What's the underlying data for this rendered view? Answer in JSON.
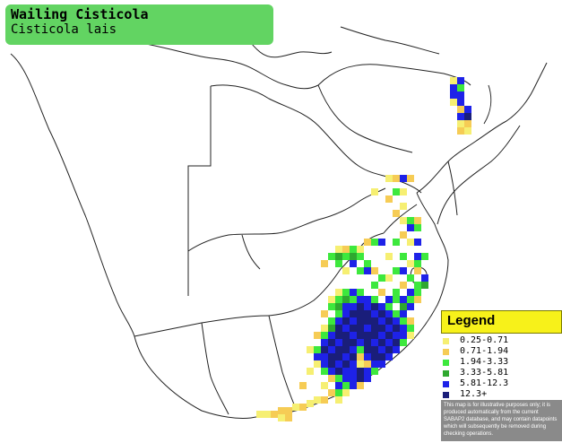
{
  "title": {
    "common_name": "Wailing Cisticola",
    "scientific_name": "Cisticola lais"
  },
  "legend": {
    "heading": "Legend",
    "items": [
      {
        "label": "0.25-0.71",
        "color": "#f6ef72"
      },
      {
        "label": "0.71-1.94",
        "color": "#f6cc55"
      },
      {
        "label": "1.94-3.33",
        "color": "#3de83d"
      },
      {
        "label": "3.33-5.81",
        "color": "#2fa82f"
      },
      {
        "label": "5.81-12.3",
        "color": "#1e22e8"
      },
      {
        "label": "12.3+",
        "color": "#1a1e7a"
      }
    ],
    "note": "This map is for illustrative purposes only; it is produced automatically from the current SABAP2 database, and may contain datapoints which will subsequently be removed during checking operations."
  },
  "colors": {
    "title_background": "#62d462",
    "legend_heading_background": "#f7f11a",
    "legend_note_background": "#8a8a8a"
  }
}
